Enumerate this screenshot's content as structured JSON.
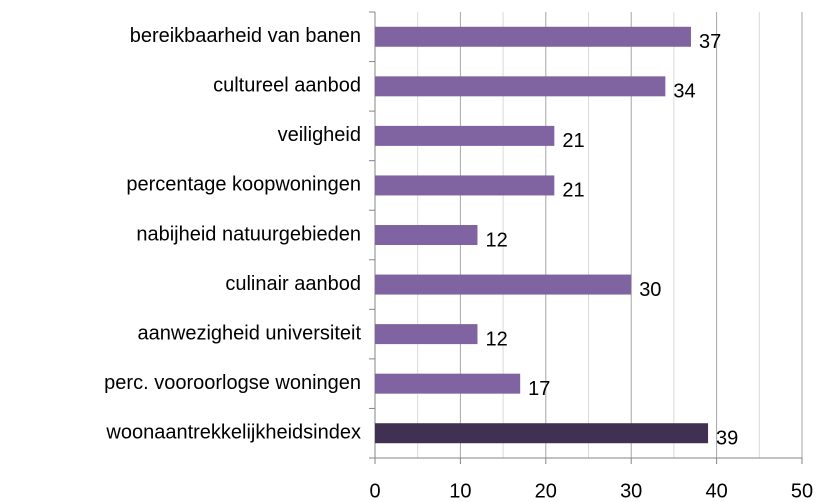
{
  "chart_data": {
    "type": "barh",
    "categories": [
      "bereikbaarheid van banen",
      "cultureel aanbod",
      "veiligheid",
      "percentage koopwoningen",
      "nabijheid natuurgebieden",
      "culinair aanbod",
      "aanwezigheid universiteit",
      "perc. vooroorlogse woningen",
      "woonaantrekkelijkheidsindex"
    ],
    "values": [
      37,
      34,
      21,
      21,
      12,
      30,
      12,
      17,
      39
    ],
    "colors": [
      "#8064a2",
      "#8064a2",
      "#8064a2",
      "#8064a2",
      "#8064a2",
      "#8064a2",
      "#8064a2",
      "#8064a2",
      "#403152"
    ],
    "xlim": [
      0,
      50
    ],
    "xticks": [
      0,
      10,
      20,
      30,
      40,
      50
    ],
    "grid": true
  }
}
